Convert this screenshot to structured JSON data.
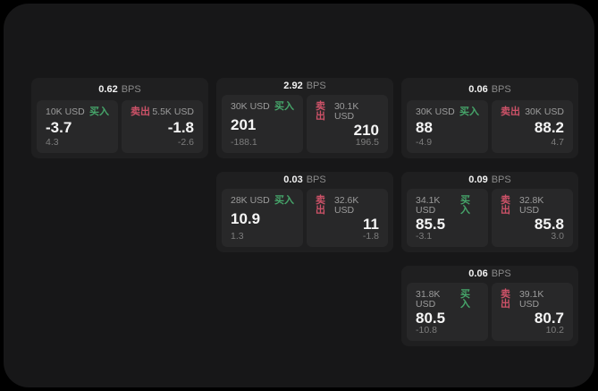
{
  "colors": {
    "background": "#000000",
    "surface": "#171718",
    "card": "#1f1f20",
    "panel": "#282829",
    "buy": "#46a56a",
    "sell": "#cd5268",
    "value_text": "#f5f5f5",
    "muted_text": "#8a8a8a"
  },
  "cards": [
    {
      "bps_value": "0.62",
      "bps_unit": "BPS",
      "buy": {
        "amount": "10K USD",
        "label": "买入",
        "value": "-3.7",
        "sub": "4.3"
      },
      "sell": {
        "label": "卖出",
        "amount": "5.5K USD",
        "value": "-1.8",
        "sub": "-2.6"
      }
    },
    {
      "bps_value": "2.92",
      "bps_unit": "BPS",
      "buy": {
        "amount": "30K USD",
        "label": "买入",
        "value": "201",
        "sub": "-188.1"
      },
      "sell": {
        "label": "卖出",
        "amount": "30.1K USD",
        "value": "210",
        "sub": "196.5"
      }
    },
    {
      "bps_value": "0.06",
      "bps_unit": "BPS",
      "buy": {
        "amount": "30K USD",
        "label": "买入",
        "value": "88",
        "sub": "-4.9"
      },
      "sell": {
        "label": "卖出",
        "amount": "30K USD",
        "value": "88.2",
        "sub": "4.7"
      }
    },
    {
      "bps_value": "0.03",
      "bps_unit": "BPS",
      "buy": {
        "amount": "28K USD",
        "label": "买入",
        "value": "10.9",
        "sub": "1.3"
      },
      "sell": {
        "label": "卖出",
        "amount": "32.6K USD",
        "value": "11",
        "sub": "-1.8"
      }
    },
    {
      "bps_value": "0.09",
      "bps_unit": "BPS",
      "buy": {
        "amount": "34.1K USD",
        "label": "买入",
        "value": "85.5",
        "sub": "-3.1"
      },
      "sell": {
        "label": "卖出",
        "amount": "32.8K USD",
        "value": "85.8",
        "sub": "3.0"
      }
    },
    {
      "bps_value": "0.06",
      "bps_unit": "BPS",
      "buy": {
        "amount": "31.8K USD",
        "label": "买入",
        "value": "80.5",
        "sub": "-10.8"
      },
      "sell": {
        "label": "卖出",
        "amount": "39.1K USD",
        "value": "80.7",
        "sub": "10.2"
      }
    }
  ]
}
